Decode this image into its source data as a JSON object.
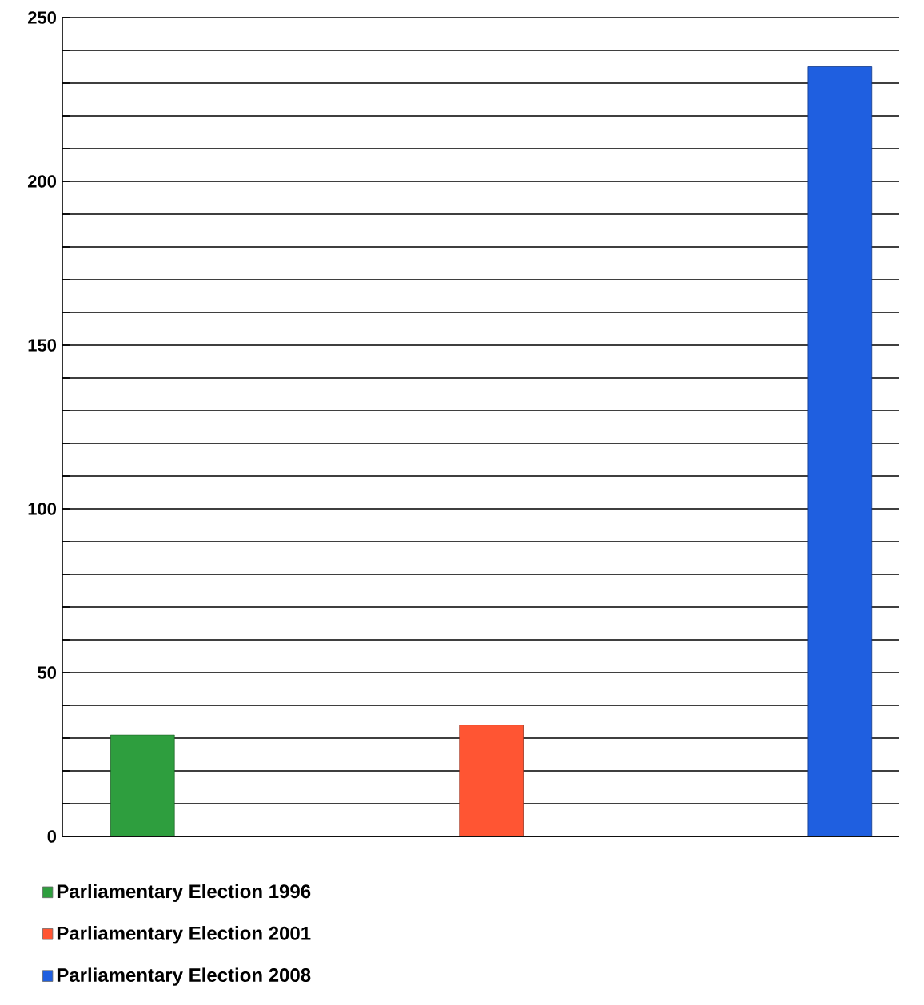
{
  "chart_data": {
    "type": "bar",
    "categories": [
      null,
      null,
      null
    ],
    "series": [
      {
        "name": "Parliamentary Election 1996",
        "color": "#2e9e3e",
        "values": [
          31,
          null,
          null
        ]
      },
      {
        "name": "Parliamentary Election 2001",
        "color": "#ff5533",
        "values": [
          null,
          34,
          null
        ]
      },
      {
        "name": "Parliamentary Election 2008",
        "color": "#1f5fe0",
        "values": [
          null,
          null,
          235
        ]
      }
    ],
    "ylim": [
      0,
      250
    ],
    "yticks": [
      0,
      {
        "value": 10,
        "label": null
      },
      {
        "value": 20,
        "label": null
      },
      {
        "value": 30,
        "label": null
      },
      {
        "value": 40,
        "label": null
      },
      50,
      {
        "value": 60,
        "label": null
      },
      {
        "value": 70,
        "label": null
      },
      {
        "value": 80,
        "label": null
      },
      {
        "value": 90,
        "label": null
      },
      100,
      {
        "value": 110,
        "label": null
      },
      {
        "value": 120,
        "label": null
      },
      {
        "value": 130,
        "label": null
      },
      {
        "value": 140,
        "label": null
      },
      150,
      {
        "value": 160,
        "label": null
      },
      {
        "value": 170,
        "label": null
      },
      {
        "value": 180,
        "label": null
      },
      {
        "value": 190,
        "label": null
      },
      200,
      {
        "value": 210,
        "label": null
      },
      {
        "value": 220,
        "label": null
      },
      {
        "value": 230,
        "label": null
      },
      {
        "value": 240,
        "label": null
      },
      250
    ],
    "grid": "y",
    "legend": "bottom left"
  }
}
